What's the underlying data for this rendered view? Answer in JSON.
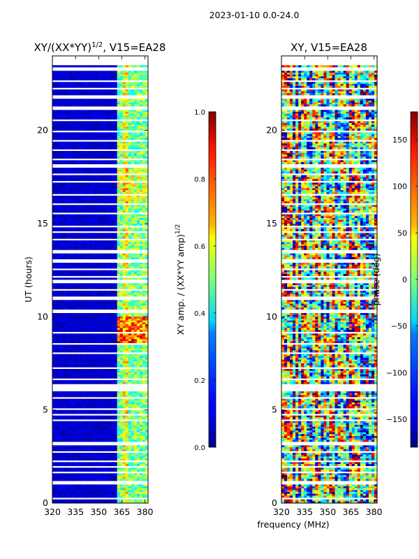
{
  "figure": {
    "suptitle": "2023-01-10 0.0-24.0",
    "shared_xlabel": "frequency (MHz)"
  },
  "chart_data": [
    {
      "type": "heatmap",
      "title": "XY/(XX*YY)",
      "title_exponent": "1/2",
      "title_suffix": ", V15=EA28",
      "ylabel": "UT (hours)",
      "xlabel": "",
      "xlim": [
        320,
        382
      ],
      "ylim": [
        0,
        24
      ],
      "xticks": [
        320,
        335,
        350,
        365,
        380
      ],
      "yticks": [
        0,
        5,
        10,
        15,
        20
      ],
      "colorbar": {
        "label": "XY amp. / (XX*YY amp)",
        "label_exponent": "1/2",
        "range": [
          0.0,
          1.0
        ],
        "ticks": [
          "0.0",
          "0.2",
          "0.4",
          "0.6",
          "0.8",
          "1.0"
        ],
        "tick_values": [
          0.0,
          0.2,
          0.4,
          0.6,
          0.8,
          1.0
        ],
        "colormap": "jet"
      },
      "description_of_values": "Mostly low amplitude (~0.05) below 362 MHz; elevated amplitude (~0.3-0.7) in 362-382 MHz band, peaking ~0.9 near UT 8.5-10"
    },
    {
      "type": "heatmap",
      "title": "XY, V15=EA28",
      "ylabel": "",
      "xlabel": "frequency (MHz)",
      "xlim": [
        320,
        382
      ],
      "ylim": [
        0,
        24
      ],
      "xticks": [
        320,
        335,
        350,
        365,
        380
      ],
      "yticks": [
        0,
        5,
        10,
        15,
        20
      ],
      "colorbar": {
        "label": "phase (deg)",
        "range": [
          -180,
          180
        ],
        "ticks": [
          "−150",
          "−100",
          "−50",
          "0",
          "50",
          "100",
          "150"
        ],
        "tick_values": [
          -150,
          -100,
          -50,
          0,
          50,
          100,
          150
        ],
        "colormap": "jet"
      },
      "description_of_values": "Phase spans full -180 to 180 deg with noisy frequency-dependent structure"
    }
  ],
  "flagged_ut_gaps": [
    [
      0.25,
      0.3
    ],
    [
      1.0,
      1.15
    ],
    [
      1.6,
      1.7
    ],
    [
      1.9,
      2.0
    ],
    [
      2.2,
      2.35
    ],
    [
      2.7,
      2.8
    ],
    [
      3.1,
      3.3
    ],
    [
      3.95,
      4.05
    ],
    [
      4.15,
      4.2
    ],
    [
      4.4,
      4.5
    ],
    [
      4.7,
      4.75
    ],
    [
      5.05,
      5.1
    ],
    [
      5.3,
      5.35
    ],
    [
      5.6,
      5.65
    ],
    [
      5.8,
      5.85
    ],
    [
      6.05,
      6.4
    ],
    [
      6.6,
      6.65
    ],
    [
      7.2,
      7.25
    ],
    [
      7.95,
      8.05
    ],
    [
      8.5,
      8.55
    ],
    [
      9.15,
      9.2
    ],
    [
      10.2,
      10.35
    ],
    [
      10.95,
      11.05
    ],
    [
      11.4,
      11.45
    ],
    [
      11.85,
      11.95
    ],
    [
      12.15,
      12.2
    ],
    [
      12.5,
      12.55
    ],
    [
      12.95,
      13.05
    ],
    [
      13.4,
      13.55
    ],
    [
      14.1,
      14.15
    ],
    [
      14.5,
      14.55
    ],
    [
      14.85,
      14.9
    ],
    [
      15.5,
      15.55
    ],
    [
      16.0,
      16.05
    ],
    [
      16.5,
      16.6
    ],
    [
      17.2,
      17.25
    ],
    [
      17.6,
      17.65
    ],
    [
      18.0,
      18.2
    ],
    [
      18.4,
      18.45
    ],
    [
      18.95,
      19.0
    ],
    [
      19.45,
      19.5
    ],
    [
      19.9,
      19.95
    ],
    [
      20.5,
      20.55
    ],
    [
      21.1,
      21.3
    ],
    [
      21.75,
      21.85
    ],
    [
      22.2,
      22.25
    ],
    [
      22.6,
      22.65
    ],
    [
      23.2,
      23.35
    ],
    [
      23.5,
      24.0
    ]
  ]
}
